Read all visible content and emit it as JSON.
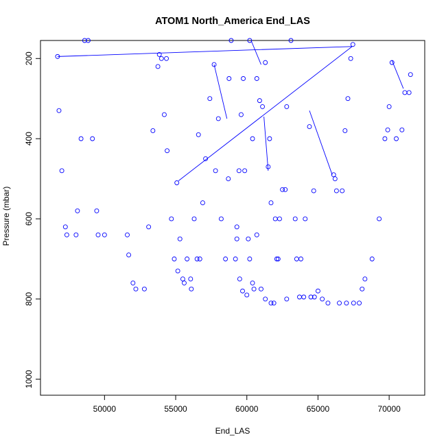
{
  "chart_data": {
    "type": "scatter",
    "title": "ATOM1 North_America End_LAS",
    "xlabel": "End_LAS",
    "ylabel": "Pressure (mbar)",
    "xlim": [
      45500,
      72500
    ],
    "ylim": [
      1040,
      155
    ],
    "y_reversed": true,
    "x_ticks": [
      50000,
      55000,
      60000,
      65000,
      70000
    ],
    "x_tick_labels": [
      "50000",
      "55000",
      "60000",
      "65000",
      "70000"
    ],
    "y_ticks": [
      200,
      400,
      600,
      800,
      1000
    ],
    "y_tick_labels": [
      "200",
      "400",
      "600",
      "800",
      "1000"
    ],
    "marker": "open-circle",
    "color": "#0000ff",
    "grid": false,
    "legend": "none",
    "series": [
      {
        "style": "points",
        "points": [
          [
            46700,
            195
          ],
          [
            46800,
            330
          ],
          [
            47000,
            480
          ],
          [
            47250,
            620
          ],
          [
            47350,
            640
          ],
          [
            48000,
            640
          ],
          [
            48100,
            580
          ],
          [
            48350,
            400
          ],
          [
            48600,
            155
          ],
          [
            48850,
            155
          ],
          [
            49150,
            400
          ],
          [
            49450,
            580
          ],
          [
            49550,
            640
          ],
          [
            50000,
            640
          ],
          [
            51600,
            640
          ],
          [
            51700,
            690
          ],
          [
            52000,
            760
          ],
          [
            52200,
            775
          ],
          [
            52800,
            775
          ],
          [
            53100,
            620
          ],
          [
            53400,
            380
          ],
          [
            53750,
            220
          ],
          [
            53850,
            190
          ],
          [
            54000,
            200
          ],
          [
            54350,
            200
          ],
          [
            54200,
            340
          ],
          [
            54400,
            430
          ],
          [
            54700,
            600
          ],
          [
            54900,
            700
          ],
          [
            55150,
            730
          ],
          [
            55500,
            750
          ],
          [
            56050,
            750
          ],
          [
            55080,
            510
          ],
          [
            55300,
            650
          ],
          [
            55600,
            760
          ],
          [
            56100,
            775
          ],
          [
            56500,
            700
          ],
          [
            56700,
            700
          ],
          [
            56600,
            390
          ],
          [
            56900,
            560
          ],
          [
            57100,
            450
          ],
          [
            57400,
            300
          ],
          [
            57700,
            215
          ],
          [
            57800,
            480
          ],
          [
            58200,
            600
          ],
          [
            58500,
            700
          ],
          [
            59200,
            700
          ],
          [
            59300,
            620
          ],
          [
            59450,
            480
          ],
          [
            59600,
            340
          ],
          [
            59750,
            250
          ],
          [
            59850,
            480
          ],
          [
            60100,
            650
          ],
          [
            60400,
            760
          ],
          [
            60500,
            775
          ],
          [
            58700,
            500
          ],
          [
            58750,
            250
          ],
          [
            58900,
            155
          ],
          [
            59300,
            650
          ],
          [
            59700,
            780
          ],
          [
            60000,
            790
          ],
          [
            60200,
            155
          ],
          [
            60400,
            400
          ],
          [
            60700,
            640
          ],
          [
            61000,
            775
          ],
          [
            61300,
            800
          ],
          [
            61700,
            810
          ],
          [
            61900,
            810
          ],
          [
            62100,
            700
          ],
          [
            62300,
            600
          ],
          [
            62500,
            527
          ],
          [
            62700,
            527
          ],
          [
            62800,
            320
          ],
          [
            63100,
            155
          ],
          [
            63400,
            600
          ],
          [
            63700,
            795
          ],
          [
            64000,
            795
          ],
          [
            64500,
            795
          ],
          [
            64750,
            795
          ],
          [
            64400,
            370
          ],
          [
            64700,
            530
          ],
          [
            65000,
            780
          ],
          [
            65300,
            800
          ],
          [
            65700,
            810
          ],
          [
            66500,
            810
          ],
          [
            67000,
            810
          ],
          [
            67500,
            810
          ],
          [
            67900,
            810
          ],
          [
            68100,
            775
          ],
          [
            68300,
            750
          ],
          [
            68800,
            700
          ],
          [
            69300,
            600
          ],
          [
            69700,
            400
          ],
          [
            69900,
            378
          ],
          [
            70200,
            210
          ],
          [
            70500,
            400
          ],
          [
            70900,
            378
          ],
          [
            61100,
            320
          ],
          [
            61300,
            210
          ],
          [
            61600,
            400
          ],
          [
            62000,
            600
          ],
          [
            62200,
            700
          ],
          [
            62800,
            800
          ],
          [
            66300,
            530
          ],
          [
            66700,
            530
          ],
          [
            66900,
            380
          ],
          [
            67100,
            300
          ],
          [
            67300,
            200
          ],
          [
            67450,
            165
          ],
          [
            70000,
            320
          ],
          [
            71100,
            285
          ],
          [
            71400,
            285
          ],
          [
            71500,
            240
          ],
          [
            66200,
            500
          ],
          [
            66100,
            490
          ],
          [
            60900,
            305
          ],
          [
            60700,
            250
          ],
          [
            61500,
            470
          ],
          [
            61700,
            560
          ],
          [
            63800,
            700
          ],
          [
            64100,
            600
          ],
          [
            60200,
            700
          ],
          [
            59500,
            750
          ],
          [
            58000,
            350
          ],
          [
            56300,
            600
          ],
          [
            55800,
            700
          ],
          [
            63500,
            700
          ]
        ]
      },
      {
        "style": "connector-lines",
        "segments": [
          [
            [
              46700,
              195
            ],
            [
              67400,
              170
            ]
          ],
          [
            [
              55200,
              505
            ],
            [
              67400,
              170
            ]
          ],
          [
            [
              57700,
              215
            ],
            [
              58600,
              350
            ]
          ],
          [
            [
              60300,
              155
            ],
            [
              61000,
              215
            ]
          ],
          [
            [
              64400,
              330
            ],
            [
              66000,
              490
            ]
          ],
          [
            [
              70200,
              205
            ],
            [
              71000,
              275
            ]
          ],
          [
            [
              61500,
              480
            ],
            [
              61200,
              345
            ]
          ]
        ]
      }
    ]
  }
}
